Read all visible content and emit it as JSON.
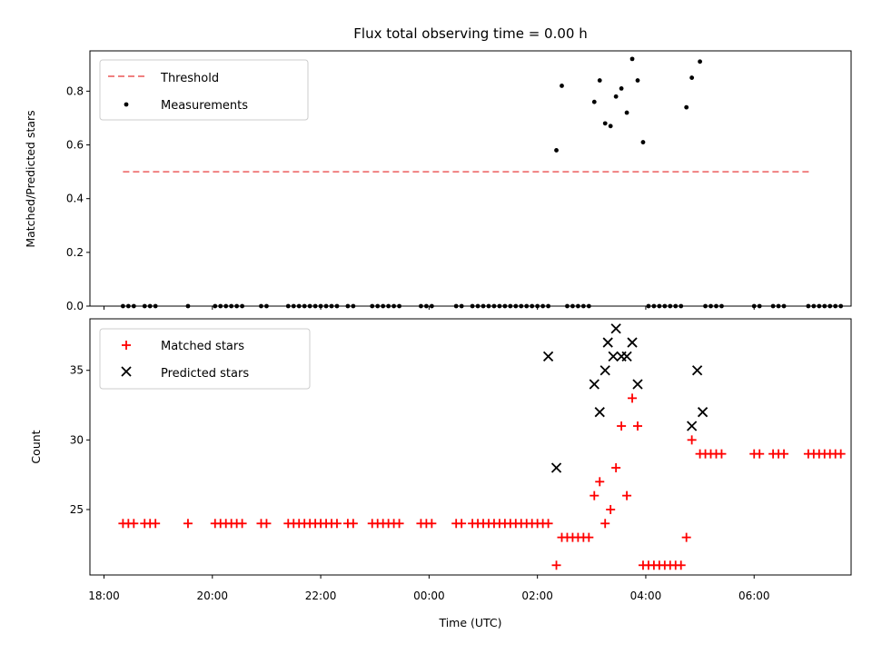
{
  "chart_data": [
    {
      "type": "scatter",
      "title": "Flux total observing time = 0.00 h",
      "ylabel": "Matched/Predicted stars",
      "xlabel": "",
      "ylim": [
        0,
        0.95
      ],
      "yticks": [
        0.0,
        0.2,
        0.4,
        0.6,
        0.8
      ],
      "ytick_labels": [
        "0.0",
        "0.2",
        "0.4",
        "0.6",
        "0.8"
      ],
      "legend_position": "upper-left",
      "colors": {
        "threshold": "#f08080",
        "measurements": "#000000"
      },
      "threshold": {
        "name": "Threshold",
        "y": 0.5,
        "x_start": 18.35,
        "x_end": 31.05
      },
      "measurements": {
        "name": "Measurements",
        "x": [
          18.35,
          18.45,
          18.55,
          18.75,
          18.85,
          18.95,
          19.55,
          20.05,
          20.15,
          20.25,
          20.35,
          20.45,
          20.55,
          20.9,
          21.0,
          21.4,
          21.5,
          21.6,
          21.7,
          21.8,
          21.9,
          22.0,
          22.1,
          22.2,
          22.3,
          22.5,
          22.6,
          22.95,
          23.05,
          23.15,
          23.25,
          23.35,
          23.45,
          23.85,
          23.95,
          24.05,
          24.5,
          24.6,
          24.8,
          24.9,
          25.0,
          25.1,
          25.2,
          25.3,
          25.4,
          25.5,
          25.6,
          25.7,
          25.8,
          25.9,
          26.0,
          26.1,
          26.2,
          26.35,
          26.45,
          26.55,
          26.65,
          26.75,
          26.85,
          26.95,
          27.05,
          27.15,
          27.25,
          27.35,
          27.45,
          27.55,
          27.65,
          27.75,
          27.85,
          27.95,
          28.05,
          28.15,
          28.25,
          28.35,
          28.45,
          28.55,
          28.65,
          28.75,
          28.85,
          29.0,
          29.1,
          29.2,
          29.3,
          29.4,
          30.0,
          30.1,
          30.35,
          30.45,
          30.55,
          31.0,
          31.1,
          31.2,
          31.3,
          31.4,
          31.5,
          31.6
        ],
        "y": [
          0,
          0,
          0,
          0,
          0,
          0,
          0,
          0,
          0,
          0,
          0,
          0,
          0,
          0,
          0,
          0,
          0,
          0,
          0,
          0,
          0,
          0,
          0,
          0,
          0,
          0,
          0,
          0,
          0,
          0,
          0,
          0,
          0,
          0,
          0,
          0,
          0,
          0,
          0,
          0,
          0,
          0,
          0,
          0,
          0,
          0,
          0,
          0,
          0,
          0,
          0,
          0,
          0,
          0.58,
          0.82,
          0,
          0,
          0,
          0,
          0,
          0.76,
          0.84,
          0.68,
          0.67,
          0.78,
          0.81,
          0.72,
          0.92,
          0.84,
          0.61,
          0,
          0,
          0,
          0,
          0,
          0,
          0,
          0.74,
          0.85,
          0.91,
          0,
          0,
          0,
          0,
          0,
          0,
          0,
          0,
          0,
          0,
          0,
          0,
          0,
          0,
          0,
          0
        ]
      },
      "xticks": [
        18,
        20,
        22,
        24,
        26,
        28,
        30
      ],
      "xtick_labels": [
        "18:00",
        "20:00",
        "22:00",
        "00:00",
        "02:00",
        "04:00",
        "06:00"
      ]
    },
    {
      "type": "scatter",
      "title": "",
      "xlabel": "Time (UTC)",
      "ylabel": "Count",
      "ylim": [
        20.3,
        38.7
      ],
      "yticks": [
        25,
        30,
        35
      ],
      "ytick_labels": [
        "25",
        "30",
        "35"
      ],
      "xticks": [
        18,
        20,
        22,
        24,
        26,
        28,
        30
      ],
      "xtick_labels": [
        "18:00",
        "20:00",
        "22:00",
        "00:00",
        "02:00",
        "04:00",
        "06:00"
      ],
      "legend_position": "upper-left",
      "colors": {
        "matched": "#ff0000",
        "predicted": "#000000"
      },
      "series": [
        {
          "name": "Matched stars",
          "marker": "plus",
          "x": [
            18.35,
            18.45,
            18.55,
            18.75,
            18.85,
            18.95,
            19.55,
            20.05,
            20.15,
            20.25,
            20.35,
            20.45,
            20.55,
            20.9,
            21.0,
            21.4,
            21.5,
            21.6,
            21.7,
            21.8,
            21.9,
            22.0,
            22.1,
            22.2,
            22.3,
            22.5,
            22.6,
            22.95,
            23.05,
            23.15,
            23.25,
            23.35,
            23.45,
            23.85,
            23.95,
            24.05,
            24.5,
            24.6,
            24.8,
            24.9,
            25.0,
            25.1,
            25.2,
            25.3,
            25.4,
            25.5,
            25.6,
            25.7,
            25.8,
            25.9,
            26.0,
            26.1,
            26.2,
            26.35,
            26.45,
            26.55,
            26.65,
            26.75,
            26.85,
            26.95,
            27.05,
            27.15,
            27.25,
            27.35,
            27.45,
            27.55,
            27.65,
            27.75,
            27.85,
            27.95,
            28.05,
            28.15,
            28.25,
            28.35,
            28.45,
            28.55,
            28.65,
            28.75,
            28.85,
            29.0,
            29.1,
            29.2,
            29.3,
            29.4,
            30.0,
            30.1,
            30.35,
            30.45,
            30.55,
            31.0,
            31.1,
            31.2,
            31.3,
            31.4,
            31.5,
            31.6
          ],
          "y": [
            24,
            24,
            24,
            24,
            24,
            24,
            24,
            24,
            24,
            24,
            24,
            24,
            24,
            24,
            24,
            24,
            24,
            24,
            24,
            24,
            24,
            24,
            24,
            24,
            24,
            24,
            24,
            24,
            24,
            24,
            24,
            24,
            24,
            24,
            24,
            24,
            24,
            24,
            24,
            24,
            24,
            24,
            24,
            24,
            24,
            24,
            24,
            24,
            24,
            24,
            24,
            24,
            24,
            21,
            23,
            23,
            23,
            23,
            23,
            23,
            26,
            27,
            24,
            25,
            28,
            31,
            26,
            33,
            31,
            21,
            21,
            21,
            21,
            21,
            21,
            21,
            21,
            23,
            30,
            29,
            29,
            29,
            29,
            29,
            29,
            29,
            29,
            29,
            29,
            29,
            29,
            29,
            29,
            29,
            29,
            29
          ]
        },
        {
          "name": "Predicted stars",
          "marker": "x",
          "x": [
            26.2,
            26.35,
            27.05,
            27.15,
            27.25,
            27.3,
            27.4,
            27.45,
            27.55,
            27.65,
            27.75,
            27.85,
            28.85,
            28.95,
            29.05
          ],
          "y": [
            36,
            28,
            34,
            32,
            35,
            37,
            36,
            38,
            36,
            36,
            37,
            34,
            31,
            35,
            32
          ]
        }
      ]
    }
  ]
}
